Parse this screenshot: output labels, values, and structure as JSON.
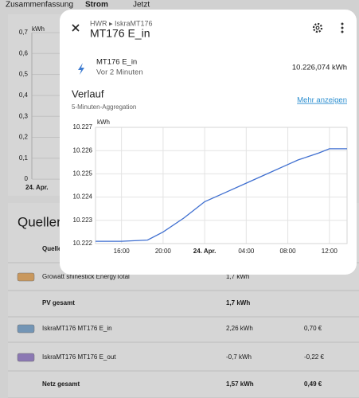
{
  "tabs": [
    "Zusammenfassung",
    "Strom",
    "Jetzt"
  ],
  "background_chart": {
    "unit": "kWh",
    "yticks": [
      "0,7",
      "0,6",
      "0,5",
      "0,4",
      "0,3",
      "0,2",
      "0,1",
      "0"
    ],
    "x_label": "24. Apr."
  },
  "sources": {
    "title": "Quellen",
    "header": "Quelle",
    "rows": [
      {
        "name": "Growatt shinestick EnergyTotal",
        "energy": "1,7 kWh",
        "color": "#f0b56f"
      },
      {
        "name": "PV gesamt",
        "energy": "1,7 kWh"
      },
      {
        "name": "IskraMT176 MT176 E_in",
        "energy": "2,26 kWh",
        "cost": "0,70 €",
        "color": "#89b2d8"
      },
      {
        "name": "IskraMT176 MT176 E_out",
        "energy": "-0,7 kWh",
        "cost": "-0,22 €",
        "color": "#a68fd6"
      },
      {
        "name": "Netz gesamt",
        "energy": "1,57 kWh",
        "cost": "0,49 €"
      }
    ]
  },
  "dialog": {
    "breadcrumb": "HWR ▸ IskraMT176",
    "title": "MT176 E_in",
    "entity": {
      "name": "MT176 E_in",
      "updated": "Vor 2 Minuten",
      "state": "10.226,074 kWh"
    },
    "history_title": "Verlauf",
    "history_subtitle": "5-Minuten-Aggregation",
    "more": "Mehr anzeigen",
    "chart": {
      "type": "line",
      "unit": "kWh",
      "color": "#3f6fd0",
      "x": [
        13.5,
        16,
        18.5,
        20,
        22,
        24,
        26,
        28,
        30,
        32,
        33,
        34,
        35,
        36,
        37.7
      ],
      "values": [
        10222.1,
        10222.1,
        10222.15,
        10222.5,
        10223.1,
        10223.8,
        10224.2,
        10224.6,
        10225.0,
        10225.4,
        10225.6,
        10225.75,
        10225.9,
        10226.08,
        10226.08
      ],
      "xlim": [
        13.5,
        37.7
      ],
      "xticks": [
        {
          "value": 16,
          "label": "16:00"
        },
        {
          "value": 20,
          "label": "20:00"
        },
        {
          "value": 24,
          "label": "24. Apr."
        },
        {
          "value": 28,
          "label": "04:00"
        },
        {
          "value": 32,
          "label": "08:00"
        },
        {
          "value": 36,
          "label": "12:00"
        }
      ],
      "ylim": [
        10222,
        10227
      ],
      "yticks": [
        {
          "value": 10222,
          "label": "10.222"
        },
        {
          "value": 10223,
          "label": "10.223"
        },
        {
          "value": 10224,
          "label": "10.224"
        },
        {
          "value": 10225,
          "label": "10.225"
        },
        {
          "value": 10226,
          "label": "10.226"
        },
        {
          "value": 10227,
          "label": "10.227"
        }
      ],
      "grid": true
    }
  }
}
